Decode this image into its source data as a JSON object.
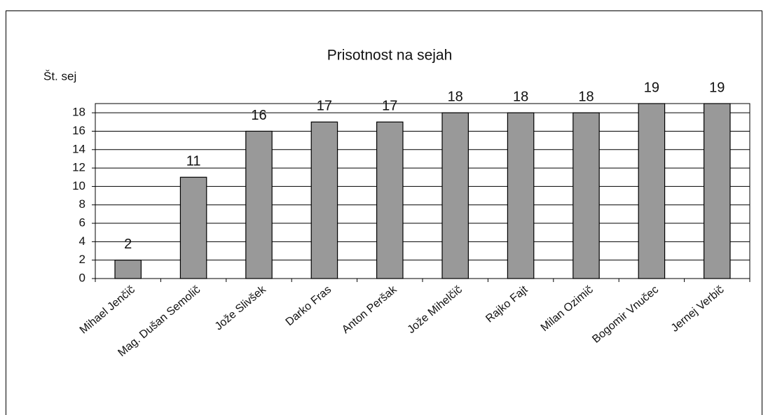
{
  "chart_data": {
    "type": "bar",
    "title": "Prisotnost na sejah",
    "y_label": "Št. sej",
    "categories": [
      "Mihael Jenčič",
      "Mag. Dušan Semolič",
      "Jože Slivšek",
      "Darko Fras",
      "Anton Peršak",
      "Jože Mihelčič",
      "Rajko Fajt",
      "Milan Ozimič",
      "Bogomir Vnučec",
      "Jernej Verbič"
    ],
    "values": [
      2,
      11,
      16,
      17,
      17,
      18,
      18,
      18,
      19,
      19
    ],
    "color": "#999999",
    "ylim": [
      0,
      19
    ],
    "yticks": [
      0,
      2,
      4,
      6,
      8,
      10,
      12,
      14,
      16,
      18
    ],
    "grid": true
  }
}
